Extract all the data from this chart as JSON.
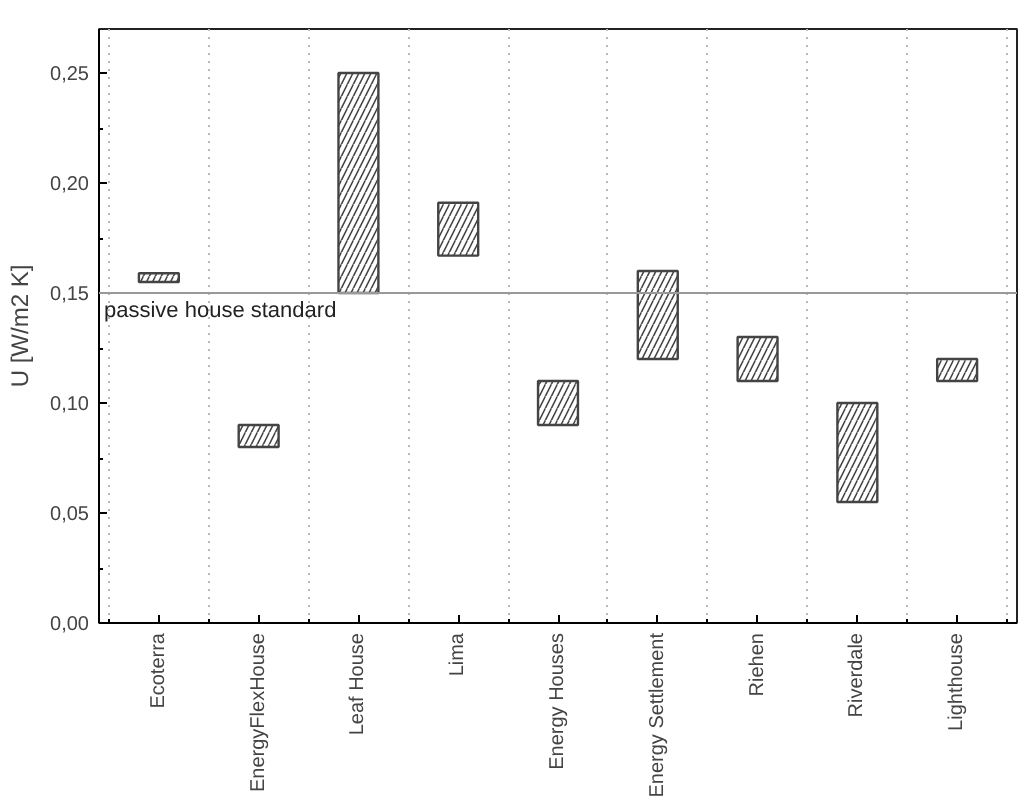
{
  "chart_data": {
    "type": "bar",
    "ylabel": "U [W/m2 K]",
    "categories": [
      "Ecoterra",
      "EnergyFlexHouse",
      "Leaf House",
      "Lima",
      "Energy Houses",
      "Energy Settlement",
      "Riehen",
      "Riverdale",
      "Lighthouse"
    ],
    "base": [
      0.155,
      0.08,
      0.15,
      0.167,
      0.09,
      0.12,
      0.11,
      0.055,
      0.11
    ],
    "values": [
      0.004,
      0.01,
      0.1,
      0.024,
      0.02,
      0.04,
      0.02,
      0.045,
      0.01
    ],
    "color": "#444444",
    "ylim": [
      0,
      0.27
    ],
    "yticks": [
      {
        "value": 0,
        "label": "0,00"
      },
      {
        "value": 0.05,
        "label": "0,05"
      },
      {
        "value": 0.1,
        "label": "0,10"
      },
      {
        "value": 0.15,
        "label": "0,15"
      },
      {
        "value": 0.2,
        "label": "0,20"
      },
      {
        "value": 0.25,
        "label": "0,25"
      }
    ],
    "ref_lines": [
      {
        "axis": "y",
        "value": 0.15,
        "label": "passive house standard",
        "color": "#999999"
      }
    ],
    "grid": "x"
  }
}
